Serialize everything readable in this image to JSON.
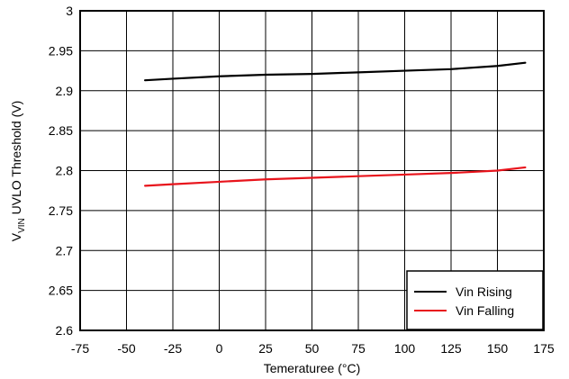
{
  "chart_data": {
    "type": "line",
    "xlabel": "Temeraturee (°C)",
    "ylabel_main": "V",
    "ylabel_sub": "VIN",
    "ylabel_rest": " UVLO Threshold  (V)",
    "xlim": [
      -75,
      175
    ],
    "ylim": [
      2.6,
      3.0
    ],
    "xticks": [
      "-75",
      "-50",
      "-25",
      "0",
      "25",
      "50",
      "75",
      "100",
      "125",
      "150",
      "175"
    ],
    "yticks": [
      "2.6",
      "2.65",
      "2.7",
      "2.75",
      "2.8",
      "2.85",
      "2.9",
      "2.95",
      "3"
    ],
    "grid": true,
    "legend_position": "bottom-right",
    "series": [
      {
        "name": "Vin Rising",
        "color": "#000000",
        "x": [
          -40,
          -25,
          0,
          25,
          50,
          75,
          100,
          125,
          150,
          165
        ],
        "y": [
          2.913,
          2.915,
          2.918,
          2.92,
          2.921,
          2.923,
          2.925,
          2.927,
          2.931,
          2.935
        ]
      },
      {
        "name": "Vin Falling",
        "color": "#e8141c",
        "x": [
          -40,
          -25,
          0,
          25,
          50,
          75,
          100,
          125,
          150,
          165
        ],
        "y": [
          2.781,
          2.783,
          2.786,
          2.789,
          2.791,
          2.793,
          2.795,
          2.797,
          2.8,
          2.804
        ]
      }
    ]
  }
}
